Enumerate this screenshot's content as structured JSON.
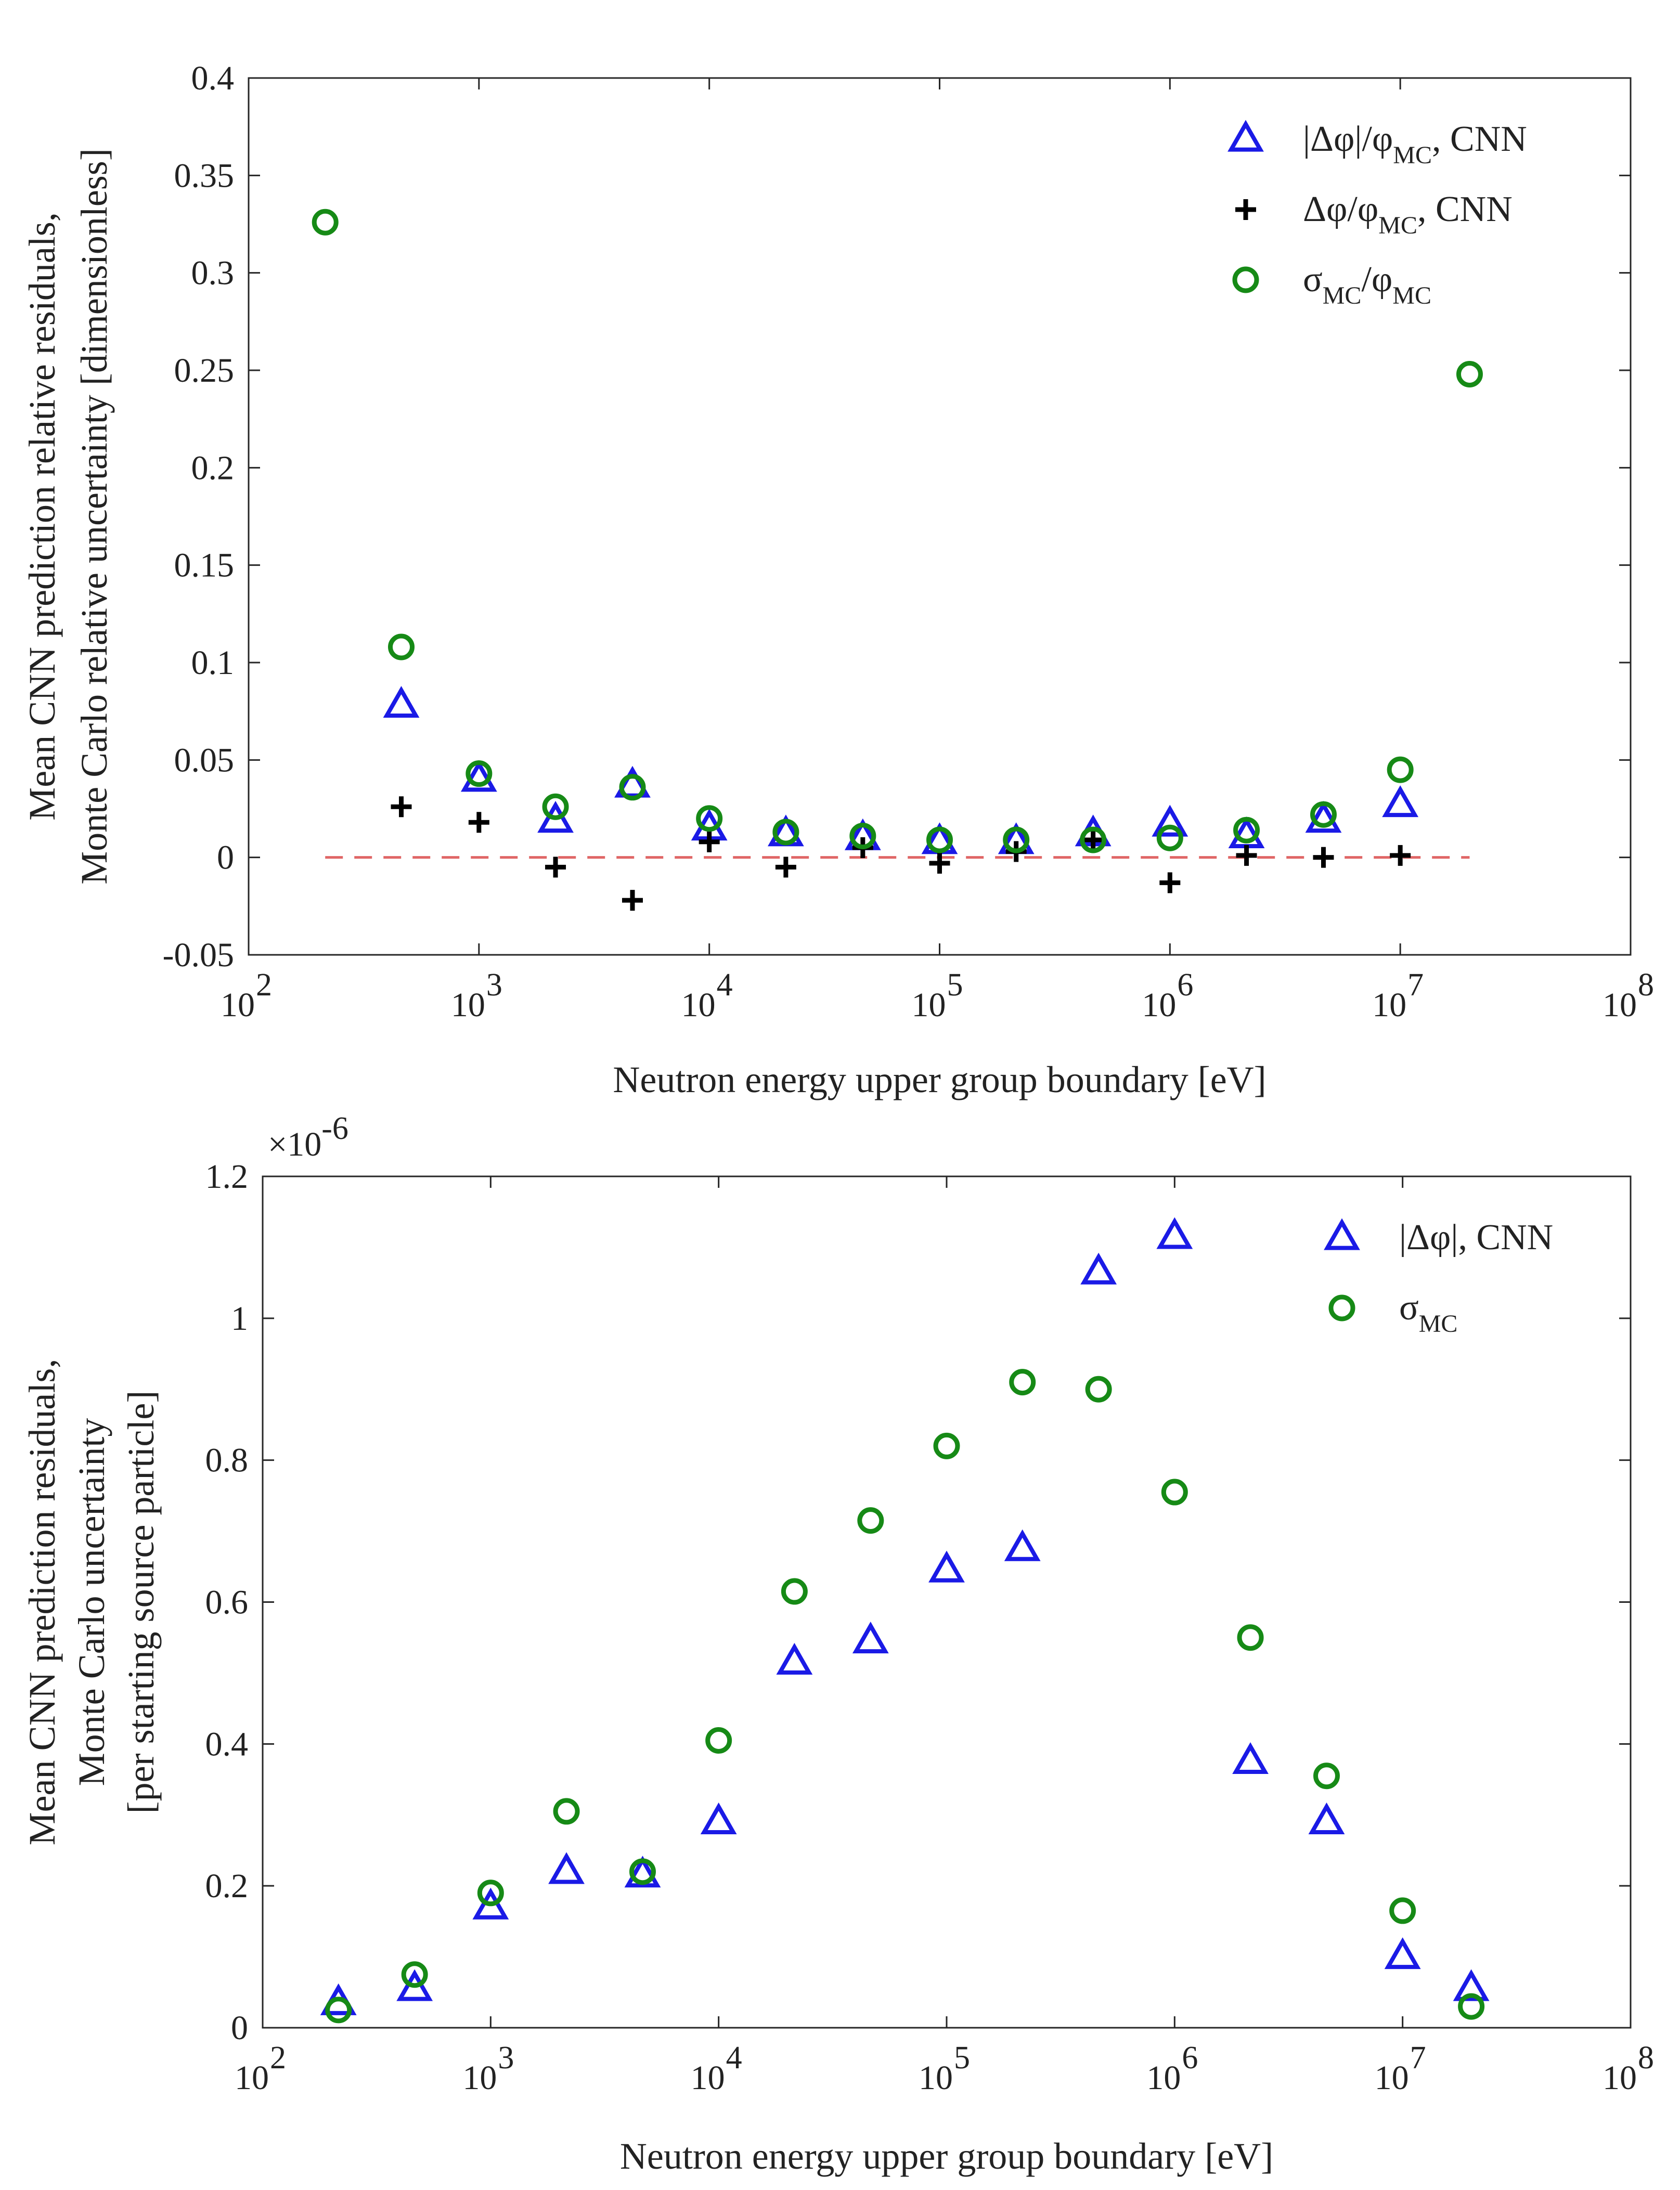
{
  "chart_data": [
    {
      "type": "scatter",
      "panel": "top",
      "title": "",
      "xlabel": "Neutron energy upper group boundary [eV]",
      "ylabel_lines": [
        "Mean CNN prediction relative residuals,",
        "Monte Carlo relative uncertainty [dimensionless]"
      ],
      "xscale": "log",
      "xlim": [
        100,
        100000000
      ],
      "ylim": [
        -0.05,
        0.4
      ],
      "x_ticks": [
        {
          "base": "10",
          "exp": "2"
        },
        {
          "base": "10",
          "exp": "3"
        },
        {
          "base": "10",
          "exp": "4"
        },
        {
          "base": "10",
          "exp": "5"
        },
        {
          "base": "10",
          "exp": "6"
        },
        {
          "base": "10",
          "exp": "7"
        },
        {
          "base": "10",
          "exp": "8"
        }
      ],
      "y_ticks": [
        "-0.05",
        "0",
        "0.05",
        "0.1",
        "0.15",
        "0.2",
        "0.25",
        "0.3",
        "0.35",
        "0.4"
      ],
      "legend_position": "top-right",
      "reference_line": {
        "y": 0,
        "style": "dashed",
        "color": "#e06666"
      },
      "series": [
        {
          "name": "|Δφ|/φMC, CNN",
          "legend_main": "|Δφ|/φ",
          "legend_sub": "MC",
          "legend_tail": ", CNN",
          "marker": "triangle",
          "color": "#1a1ae6",
          "x": [
            460,
            1000,
            2150,
            4640,
            10000,
            21500,
            46400,
            100000,
            215000,
            464000,
            1000000,
            2150000,
            4640000,
            10000000
          ],
          "y": [
            0.078,
            0.04,
            0.019,
            0.037,
            0.015,
            0.012,
            0.01,
            0.008,
            0.008,
            0.012,
            0.017,
            0.011,
            0.019,
            0.027
          ]
        },
        {
          "name": "Δφ/φMC, CNN",
          "legend_main": "Δφ/φ",
          "legend_sub": "MC",
          "legend_tail": ", CNN",
          "marker": "plus",
          "color": "#000000",
          "x": [
            460,
            1000,
            2150,
            4640,
            10000,
            21500,
            46400,
            100000,
            215000,
            464000,
            1000000,
            2150000,
            4640000,
            10000000
          ],
          "y": [
            0.026,
            0.018,
            -0.005,
            -0.022,
            0.008,
            -0.005,
            0.005,
            -0.003,
            0.003,
            0.009,
            -0.013,
            0.001,
            0.0,
            0.001
          ]
        },
        {
          "name": "σMC/φMC",
          "legend_main": "σ",
          "legend_sub": "MC",
          "legend_tail": "/φ",
          "legend_sub2": "MC",
          "marker": "circle",
          "color": "#168a16",
          "x": [
            215,
            460,
            1000,
            2150,
            4640,
            10000,
            21500,
            46400,
            100000,
            215000,
            464000,
            1000000,
            2150000,
            4640000,
            10000000,
            20000000
          ],
          "y": [
            0.326,
            0.108,
            0.043,
            0.026,
            0.036,
            0.02,
            0.013,
            0.011,
            0.009,
            0.009,
            0.009,
            0.01,
            0.014,
            0.022,
            0.045,
            0.248
          ]
        }
      ]
    },
    {
      "type": "scatter",
      "panel": "bottom",
      "title": "",
      "xlabel": "Neutron energy upper group boundary [eV]",
      "ylabel_lines": [
        "Mean CNN prediction  residuals,",
        "Monte Carlo uncertainty",
        "[per starting source particle]"
      ],
      "xscale": "log",
      "xlim": [
        100,
        100000000
      ],
      "ylim": [
        0,
        1.2
      ],
      "y_multiplier": {
        "base": "×10",
        "exp": "-6"
      },
      "x_ticks": [
        {
          "base": "10",
          "exp": "2"
        },
        {
          "base": "10",
          "exp": "3"
        },
        {
          "base": "10",
          "exp": "4"
        },
        {
          "base": "10",
          "exp": "5"
        },
        {
          "base": "10",
          "exp": "6"
        },
        {
          "base": "10",
          "exp": "7"
        },
        {
          "base": "10",
          "exp": "8"
        }
      ],
      "y_ticks": [
        "0",
        "0.2",
        "0.4",
        "0.6",
        "0.8",
        "1",
        "1.2"
      ],
      "legend_position": "top-right",
      "series": [
        {
          "name": "|Δφ|, CNN",
          "legend_main": "|Δφ|, CNN",
          "legend_sub": "",
          "marker": "triangle",
          "color": "#1a1ae6",
          "x": [
            215,
            464,
            1000,
            2150,
            4640,
            10000,
            21500,
            46400,
            100000,
            215000,
            464000,
            1000000,
            2150000,
            4640000,
            10000000,
            20000000
          ],
          "y": [
            0.035,
            0.055,
            0.17,
            0.22,
            0.215,
            0.29,
            0.515,
            0.545,
            0.645,
            0.675,
            1.065,
            1.115,
            0.375,
            0.29,
            0.1,
            0.055
          ]
        },
        {
          "name": "σMC",
          "legend_main": "σ",
          "legend_sub": "MC",
          "marker": "circle",
          "color": "#168a16",
          "x": [
            215,
            464,
            1000,
            2150,
            4640,
            10000,
            21500,
            46400,
            100000,
            215000,
            464000,
            1000000,
            2150000,
            4640000,
            10000000,
            20000000
          ],
          "y": [
            0.025,
            0.075,
            0.19,
            0.305,
            0.22,
            0.405,
            0.615,
            0.715,
            0.82,
            0.91,
            0.9,
            0.755,
            0.55,
            0.355,
            0.165,
            0.03
          ]
        }
      ]
    }
  ]
}
